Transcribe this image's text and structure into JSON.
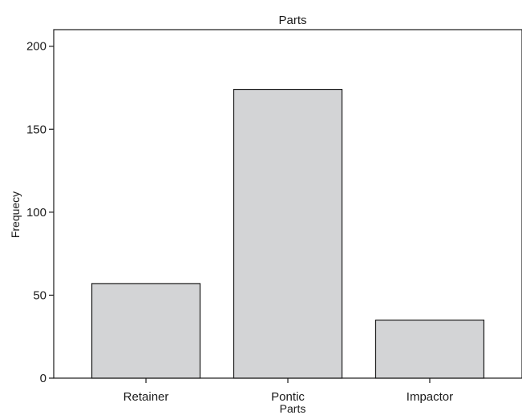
{
  "chart_data": {
    "type": "bar",
    "title": "Parts",
    "xlabel": "Parts",
    "ylabel": "Frequecy",
    "categories": [
      "Retainer",
      "Pontic",
      "Impactor"
    ],
    "values": [
      57,
      174,
      35
    ],
    "ylim": [
      0,
      210
    ],
    "yticks": [
      0,
      50,
      100,
      150,
      200
    ],
    "grid": false,
    "colors": {
      "bar_fill": "#d3d4d6",
      "bar_stroke": "#1a1a1a"
    }
  }
}
